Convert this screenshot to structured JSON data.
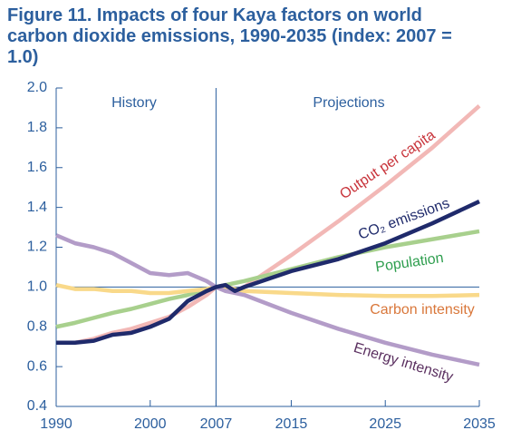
{
  "chart_data": {
    "type": "line",
    "title": "Figure 11. Impacts of four Kaya factors on world carbon dioxide emissions, 1990-2035 (index: 2007 = 1.0)",
    "annotations": [
      "History",
      "Projections"
    ],
    "x": [
      1990,
      1992,
      1994,
      1996,
      1998,
      2000,
      2002,
      2004,
      2006,
      2007,
      2008,
      2009,
      2010,
      2015,
      2020,
      2025,
      2030,
      2035
    ],
    "series": [
      {
        "name": "Output per capita",
        "color": "#f2b8b6",
        "label_color": "#c8333a",
        "values": [
          0.72,
          0.72,
          0.74,
          0.77,
          0.79,
          0.82,
          0.85,
          0.9,
          0.96,
          1.0,
          1.01,
          0.98,
          1.0,
          1.16,
          1.33,
          1.51,
          1.7,
          1.91
        ]
      },
      {
        "name": "Population",
        "color": "#a8d08d",
        "label_color": "#2e9e4e",
        "values": [
          0.8,
          0.82,
          0.845,
          0.87,
          0.89,
          0.915,
          0.94,
          0.96,
          0.99,
          1.0,
          1.01,
          1.02,
          1.03,
          1.09,
          1.15,
          1.2,
          1.24,
          1.28
        ]
      },
      {
        "name": "Carbon intensity",
        "color": "#f9d98a",
        "label_color": "#d9773a",
        "values": [
          1.01,
          0.99,
          0.99,
          0.98,
          0.98,
          0.97,
          0.97,
          0.98,
          0.99,
          1.0,
          1.0,
          0.99,
          0.98,
          0.97,
          0.96,
          0.955,
          0.955,
          0.96
        ]
      },
      {
        "name": "Energy intensity",
        "color": "#b39cc8",
        "label_color": "#5b3060",
        "values": [
          1.26,
          1.22,
          1.2,
          1.17,
          1.12,
          1.07,
          1.06,
          1.07,
          1.03,
          1.0,
          0.98,
          0.97,
          0.96,
          0.87,
          0.79,
          0.72,
          0.66,
          0.61
        ]
      },
      {
        "name": "CO₂ emissions",
        "color": "#1f2a6b",
        "label_color": "#1f2a6b",
        "values": [
          0.72,
          0.72,
          0.73,
          0.76,
          0.77,
          0.8,
          0.84,
          0.93,
          0.98,
          1.0,
          1.01,
          0.98,
          1.0,
          1.08,
          1.14,
          1.22,
          1.32,
          1.43
        ]
      }
    ],
    "xlim": [
      1990,
      2035
    ],
    "xticks": [
      1990,
      2000,
      2007,
      2015,
      2025,
      2035
    ],
    "ylim": [
      0.4,
      2.0
    ],
    "yticks": [
      0.4,
      0.6,
      0.8,
      {
        "value": 1,
        "label": "1.0"
      },
      1.2,
      1.4,
      1.6,
      1.8,
      {
        "value": 2,
        "label": "2.0"
      }
    ],
    "divider_x": 2007,
    "reference_y": 1
  }
}
